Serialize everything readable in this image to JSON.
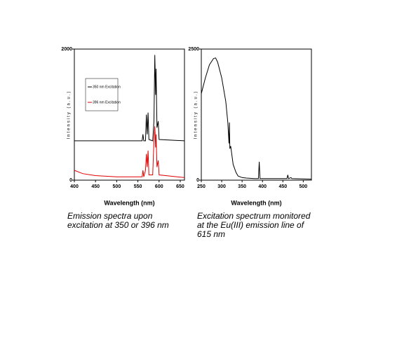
{
  "chart_data": [
    {
      "type": "line",
      "x_label": "Wavelength (nm)",
      "y_label": "Intensity (a.u.)",
      "caption": "Emission spectra upon excitation at 350 or 396 nm",
      "xlim": [
        400,
        660
      ],
      "xticks": [
        400,
        450,
        500,
        550,
        600,
        650
      ],
      "ylim": [
        0,
        2000
      ],
      "yticks": [
        0,
        2000
      ],
      "legend": "upper left",
      "series": [
        {
          "name": "350 nm Excitation",
          "color": "#000000",
          "x": [
            400,
            500,
            560,
            562,
            564,
            568,
            570,
            572,
            574,
            576,
            585,
            588,
            590,
            592,
            593,
            595,
            598,
            600,
            660
          ],
          "values": [
            600,
            600,
            600,
            700,
            600,
            600,
            1000,
            700,
            1030,
            620,
            600,
            900,
            1910,
            1300,
            1700,
            800,
            900,
            620,
            600
          ]
        },
        {
          "name": "396 nm Excitation",
          "color": "#e00000",
          "x": [
            400,
            420,
            450,
            500,
            560,
            562,
            564,
            568,
            570,
            572,
            574,
            576,
            585,
            588,
            590,
            592,
            593,
            595,
            598,
            600,
            660
          ],
          "values": [
            150,
            100,
            70,
            50,
            50,
            150,
            50,
            150,
            400,
            200,
            450,
            80,
            80,
            600,
            820,
            500,
            700,
            200,
            300,
            80,
            40
          ]
        }
      ]
    },
    {
      "type": "line",
      "x_label": "Wavelength (nm)",
      "y_label": "Intensity (a.u.)",
      "caption": "Excitation spectrum monitored at the Eu(III) emission line of 615 nm",
      "xlim": [
        250,
        520
      ],
      "xticks": [
        250,
        300,
        350,
        400,
        450,
        500
      ],
      "ylim": [
        0,
        2500
      ],
      "yticks": [
        0,
        2500
      ],
      "series": [
        {
          "color": "#000000",
          "x": [
            250,
            260,
            270,
            280,
            285,
            290,
            300,
            310,
            315,
            318,
            319,
            320,
            322,
            328,
            335,
            340,
            350,
            360,
            380,
            390,
            392,
            394,
            420,
            460,
            462,
            464,
            470,
            472,
            520
          ],
          "values": [
            1650,
            1950,
            2200,
            2320,
            2330,
            2250,
            1950,
            1500,
            1100,
            700,
            1100,
            600,
            650,
            300,
            150,
            80,
            50,
            40,
            30,
            30,
            350,
            30,
            30,
            30,
            100,
            30,
            50,
            30,
            20
          ]
        }
      ]
    }
  ]
}
